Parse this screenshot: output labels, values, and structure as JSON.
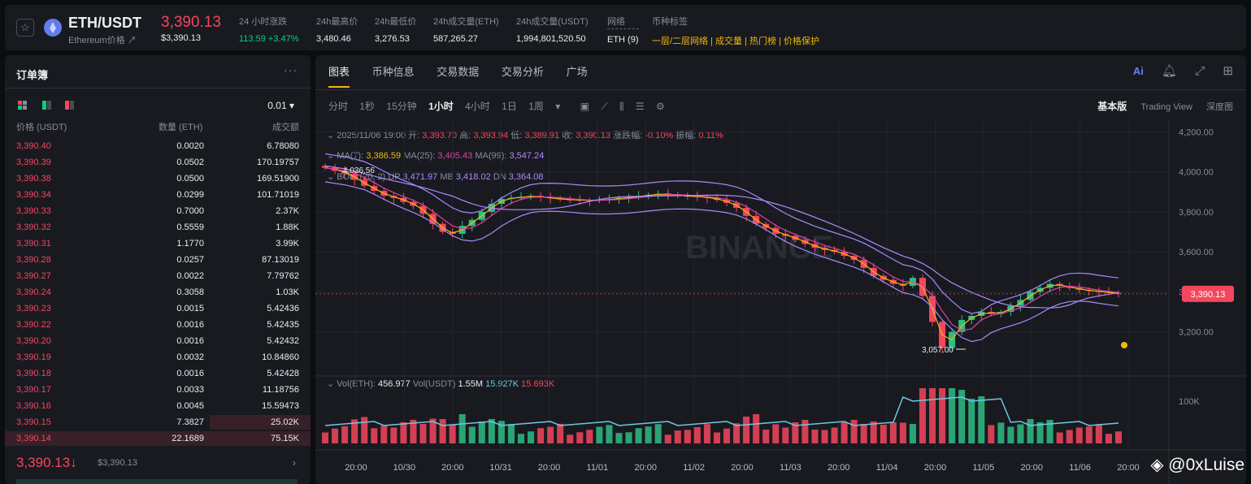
{
  "ticker": {
    "pair": "ETH/USDT",
    "subtitle": "Ethereum价格 ↗",
    "last_price": "3,390.13",
    "last_price_usd": "$3,390.13",
    "stats": [
      {
        "label": "24 小时涨跌",
        "value": "113.59 +3.47%"
      },
      {
        "label": "24h最高价",
        "value": "3,480.46"
      },
      {
        "label": "24h最低价",
        "value": "3,276.53"
      },
      {
        "label": "24h成交量(ETH)",
        "value": "587,265.27"
      },
      {
        "label": "24h成交量(USDT)",
        "value": "1,994,801,520.50"
      },
      {
        "label": "网络",
        "value": "ETH (9)"
      }
    ],
    "tags_label": "币种标签",
    "tags": "一层/二层网络 | 成交量 | 热门榜 | 价格保护"
  },
  "orderbook": {
    "title": "订单簿",
    "more": "···",
    "precision": "0.01 ▾",
    "col_price": "价格 (USDT)",
    "col_qty": "数量 (ETH)",
    "col_total": "成交额",
    "rows": [
      {
        "price": "3,390.40",
        "qty": "0.0020",
        "total": "6.78080",
        "depth": 0
      },
      {
        "price": "3,390.39",
        "qty": "0.0502",
        "total": "170.19757",
        "depth": 0
      },
      {
        "price": "3,390.38",
        "qty": "0.0500",
        "total": "169.51900",
        "depth": 0
      },
      {
        "price": "3,390.34",
        "qty": "0.0299",
        "total": "101.71019",
        "depth": 0
      },
      {
        "price": "3,390.33",
        "qty": "0.7000",
        "total": "2.37K",
        "depth": 0
      },
      {
        "price": "3,390.32",
        "qty": "0.5559",
        "total": "1.88K",
        "depth": 0
      },
      {
        "price": "3,390.31",
        "qty": "1.1770",
        "total": "3.99K",
        "depth": 0
      },
      {
        "price": "3,390.28",
        "qty": "0.0257",
        "total": "87.13019",
        "depth": 0
      },
      {
        "price": "3,390.27",
        "qty": "0.0022",
        "total": "7.79762",
        "depth": 0
      },
      {
        "price": "3,390.24",
        "qty": "0.3058",
        "total": "1.03K",
        "depth": 0
      },
      {
        "price": "3,390.23",
        "qty": "0.0015",
        "total": "5.42436",
        "depth": 0
      },
      {
        "price": "3,390.22",
        "qty": "0.0016",
        "total": "5.42435",
        "depth": 0
      },
      {
        "price": "3,390.20",
        "qty": "0.0016",
        "total": "5.42432",
        "depth": 0
      },
      {
        "price": "3,390.19",
        "qty": "0.0032",
        "total": "10.84860",
        "depth": 0
      },
      {
        "price": "3,390.18",
        "qty": "0.0016",
        "total": "5.42428",
        "depth": 0
      },
      {
        "price": "3,390.17",
        "qty": "0.0033",
        "total": "11.18756",
        "depth": 0
      },
      {
        "price": "3,390.16",
        "qty": "0.0045",
        "total": "15.59473",
        "depth": 0
      },
      {
        "price": "3,390.15",
        "qty": "7.3827",
        "total": "25.02K",
        "depth": 0.33
      },
      {
        "price": "3,390.14",
        "qty": "22.1689",
        "total": "75.15K",
        "depth": 1.0
      }
    ],
    "last_price": "3,390.13↓",
    "last_price_usd": "$3,390.13",
    "chevron": "›"
  },
  "chart": {
    "tabs": [
      "图表",
      "币种信息",
      "交易数据",
      "交易分析",
      "广场"
    ],
    "intervals": [
      "分时",
      "1秒",
      "15分钟",
      "1小时",
      "4小时",
      "1日",
      "1周",
      "▾"
    ],
    "active_interval": "1小时",
    "views": [
      "基本版",
      "Trading View",
      "深度图"
    ],
    "ohlc_line": "2025/11/06 19:00",
    "ohlc": {
      "open_label": "开:",
      "open": "3,393.70",
      "high_label": "高:",
      "high": "3,393.94",
      "low_label": "低:",
      "low": "3,389.91",
      "close_label": "收:",
      "close": "3,390.13",
      "chg_label": "涨跌幅:",
      "chg": "-0.10%",
      "amp_label": "振幅:",
      "amp": "0.11%"
    },
    "ma": {
      "ma7_label": "MA(7):",
      "ma7": "3,386.59",
      "ma25_label": "MA(25):",
      "ma25": "3,405.43",
      "ma99_label": "MA(99):",
      "ma99": "3,547.24"
    },
    "boll": {
      "label": "BOLL(20, 2)",
      "up_label": "UP",
      "up": "3,471.97",
      "mb_label": "MB",
      "mb": "3,418.02",
      "dn_label": "DN",
      "dn": "3,364.08"
    },
    "vol": {
      "eth_label": "Vol(ETH):",
      "eth": "456.977",
      "usdt_label": "Vol(USDT)",
      "usdt": "1.55M",
      "ma1": "15.927K",
      "ma2": "15.693K"
    },
    "watermark_text": "BINANCE",
    "high_marker": "4,036.56",
    "low_marker": "3,057.00",
    "current_price_tag": "3,390.13",
    "vol_axis_label": "100K",
    "colors": {
      "up": "#2ebd85",
      "down": "#f6465d",
      "ma7": "#f0b90b",
      "ma25": "#e040a0",
      "ma99": "#b388ff",
      "boll": "#a78bfa"
    }
  },
  "chart_data": {
    "type": "candlestick",
    "title": "ETH/USDT 1小时",
    "x_ticks": [
      "20:00",
      "10/30",
      "20:00",
      "10/31",
      "20:00",
      "11/01",
      "20:00",
      "11/02",
      "20:00",
      "11/03",
      "20:00",
      "11/04",
      "20:00",
      "11/05",
      "20:00",
      "11/06",
      "20:00"
    ],
    "y_ticks": [
      "4,200.00",
      "4,000.00",
      "3,800.00",
      "3,600.00",
      "3,400.00",
      "3,200.00"
    ],
    "ylim": [
      3000,
      4250
    ],
    "close_series": [
      4020,
      4005,
      3990,
      3960,
      3930,
      3905,
      3880,
      3870,
      3850,
      3830,
      3790,
      3740,
      3700,
      3690,
      3730,
      3760,
      3800,
      3840,
      3865,
      3870,
      3875,
      3880,
      3872,
      3868,
      3862,
      3860,
      3858,
      3856,
      3860,
      3862,
      3870,
      3872,
      3880,
      3885,
      3890,
      3888,
      3880,
      3878,
      3875,
      3870,
      3860,
      3845,
      3820,
      3780,
      3740,
      3720,
      3690,
      3680,
      3660,
      3640,
      3620,
      3610,
      3600,
      3580,
      3560,
      3520,
      3480,
      3460,
      3440,
      3430,
      3470,
      3380,
      3250,
      3120,
      3200,
      3260,
      3280,
      3300,
      3290,
      3300,
      3330,
      3360,
      3400,
      3420,
      3440,
      3430,
      3420,
      3410,
      3405,
      3400,
      3395,
      3390
    ],
    "low_marker": 3057.0,
    "high_marker": 4036.56
  }
}
